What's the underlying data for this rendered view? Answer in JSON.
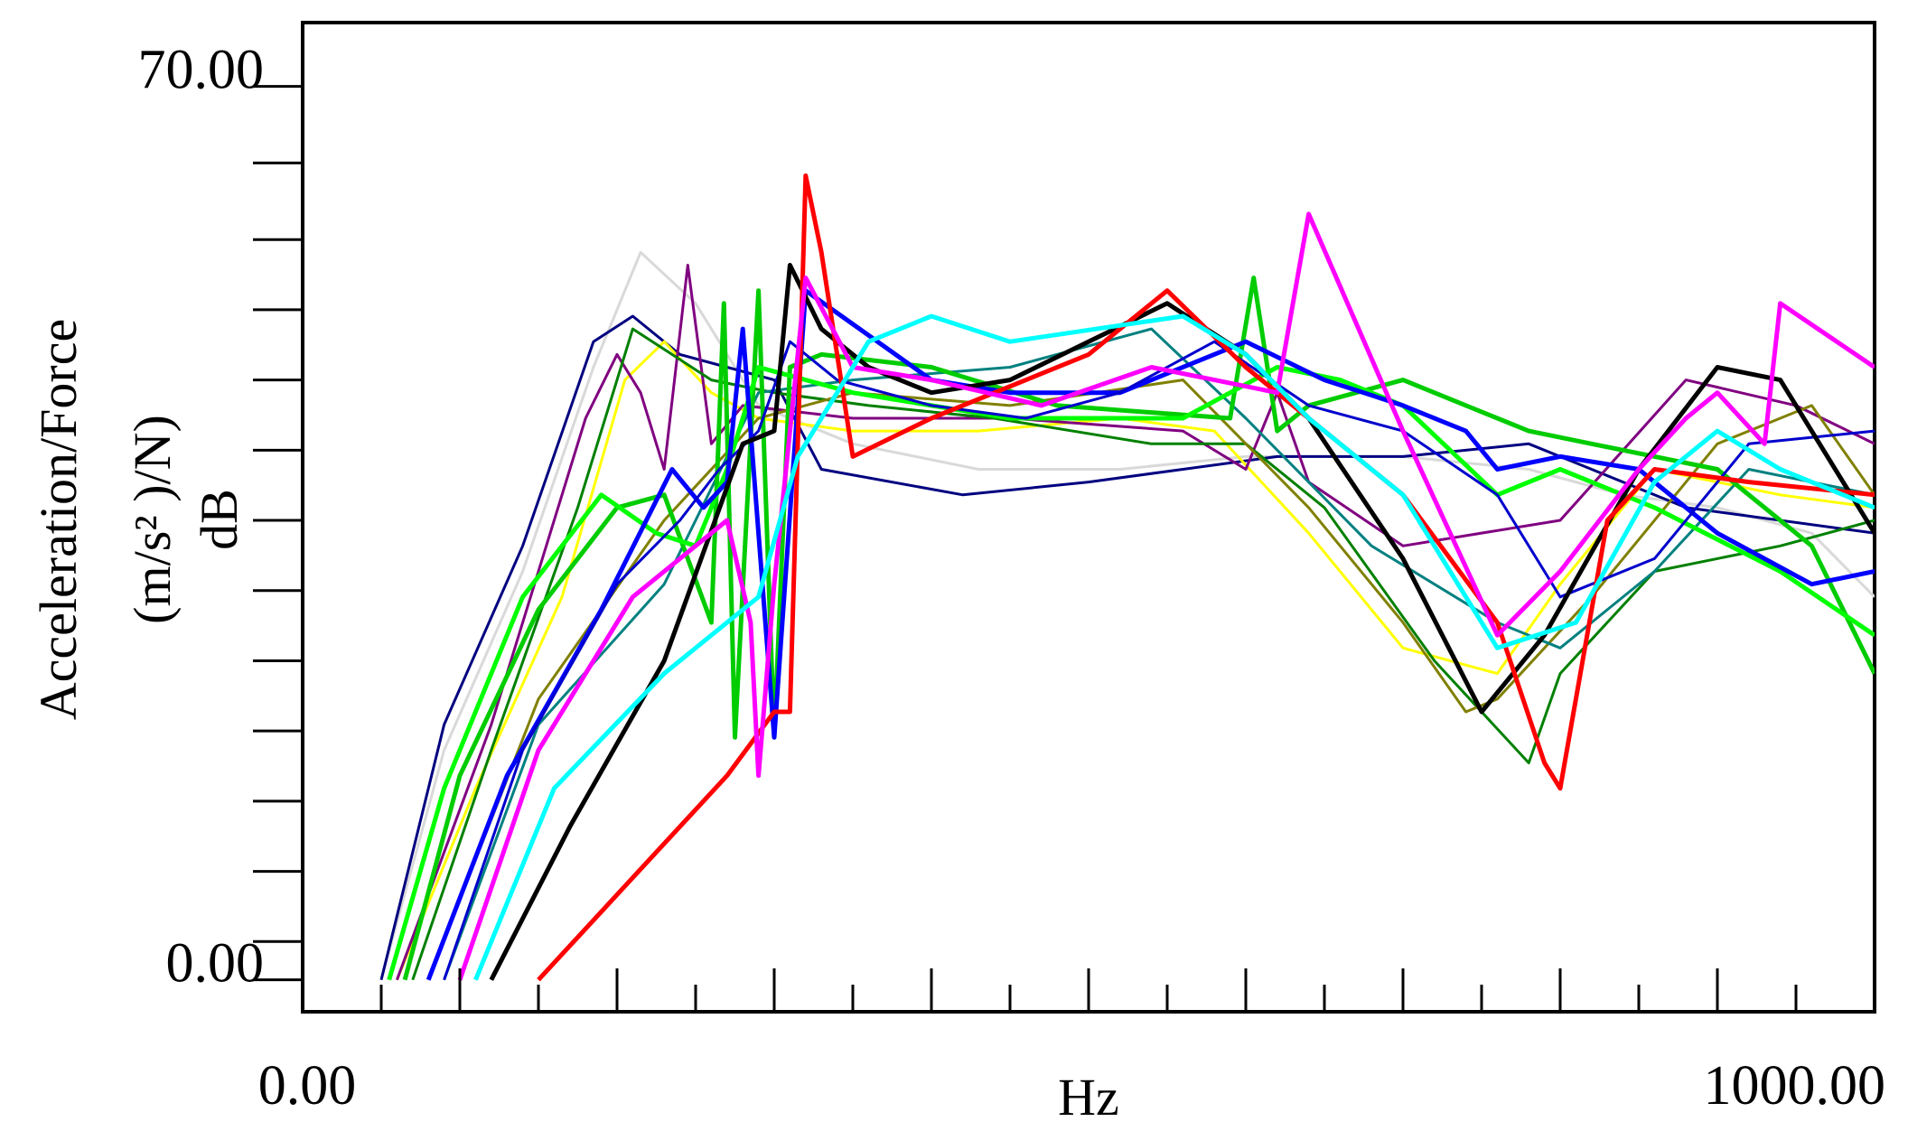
{
  "chart_data": {
    "type": "line",
    "title": "",
    "xlabel": "Hz",
    "ylabel_lines": [
      "Acceleration/Force",
      "(m/s² )/N)",
      "dB"
    ],
    "xlim": [
      0,
      1000
    ],
    "ylim": [
      -2.5,
      75
    ],
    "x_tick_labels": [
      {
        "value": 0,
        "label": "0.00"
      },
      {
        "value": 1000,
        "label": "1000.00"
      }
    ],
    "y_tick_labels": [
      {
        "value": 0,
        "label": "0.00"
      },
      {
        "value": 70,
        "label": "70.00"
      }
    ],
    "x_minor_ticks": [
      50,
      100,
      150,
      200,
      250,
      300,
      350,
      400,
      450,
      500,
      550,
      600,
      650,
      700,
      750,
      800,
      850,
      900,
      950
    ],
    "x_minor_tick_long": [
      100,
      200,
      300,
      400,
      500,
      600,
      700,
      800,
      900
    ],
    "y_minor_ticks": [
      3,
      8.5,
      14,
      19.5,
      25,
      30.5,
      36,
      41.5,
      47,
      52.5,
      58,
      64
    ],
    "grid": false,
    "legend": "none",
    "series": [
      {
        "color": "#d9d9d9",
        "width": 3,
        "x": [
          50,
          90,
          140,
          185,
          215,
          250,
          290,
          350,
          430,
          520,
          600,
          700,
          780,
          840,
          900,
          960,
          1000
        ],
        "y": [
          0,
          18,
          32,
          48,
          57,
          53,
          45,
          42,
          40,
          40,
          41,
          41,
          40,
          38,
          37,
          35,
          30
        ]
      },
      {
        "color": "#000080",
        "width": 3,
        "x": [
          50,
          90,
          140,
          185,
          210,
          240,
          270,
          300,
          330,
          420,
          500,
          560,
          620,
          700,
          780,
          820,
          880,
          1000
        ],
        "y": [
          0,
          20,
          34,
          50,
          52,
          49,
          48,
          47,
          40,
          38,
          39,
          40,
          41,
          41,
          42,
          40,
          37,
          35
        ]
      },
      {
        "color": "#ffff00",
        "width": 3,
        "x": [
          60,
          110,
          165,
          205,
          230,
          260,
          290,
          350,
          430,
          520,
          580,
          640,
          700,
          760,
          800,
          860,
          940,
          1000
        ],
        "y": [
          0,
          15,
          30,
          47,
          50,
          46,
          44,
          43,
          43,
          44,
          43,
          35,
          26,
          24,
          31,
          40,
          38,
          37
        ]
      },
      {
        "color": "#800080",
        "width": 3,
        "x": [
          60,
          120,
          180,
          200,
          215,
          230,
          245,
          260,
          280,
          350,
          450,
          560,
          600,
          620,
          640,
          700,
          800,
          880,
          950,
          1000
        ],
        "y": [
          0,
          20,
          44,
          49,
          46,
          40,
          56,
          42,
          45,
          44,
          44,
          43,
          40,
          46,
          39,
          34,
          36,
          47,
          45,
          42
        ]
      },
      {
        "color": "#008000",
        "width": 3,
        "x": [
          70,
          120,
          175,
          210,
          260,
          300,
          360,
          440,
          540,
          600,
          650,
          720,
          780,
          800,
          860,
          940,
          1000
        ],
        "y": [
          0,
          18,
          37,
          51,
          47,
          46,
          45,
          44,
          42,
          42,
          37,
          25,
          17,
          24,
          32,
          34,
          36
        ]
      },
      {
        "color": "#808000",
        "width": 3,
        "x": [
          80,
          150,
          230,
          290,
          350,
          450,
          560,
          640,
          700,
          740,
          760,
          820,
          900,
          960,
          1000
        ],
        "y": [
          0,
          22,
          36,
          44,
          46,
          45,
          47,
          37,
          28,
          21,
          22,
          30,
          42,
          45,
          38
        ]
      },
      {
        "color": "#008080",
        "width": 3,
        "x": [
          90,
          150,
          230,
          290,
          350,
          450,
          540,
          600,
          680,
          760,
          800,
          860,
          920,
          1000
        ],
        "y": [
          0,
          20,
          31,
          46,
          47,
          48,
          51,
          44,
          34,
          28,
          26,
          32,
          40,
          38
        ]
      },
      {
        "color": "#00cc00",
        "width": 5,
        "x": [
          65,
          100,
          150,
          200,
          230,
          260,
          268,
          275,
          290,
          300,
          310,
          330,
          400,
          480,
          590,
          605,
          620,
          640,
          700,
          780,
          820,
          900,
          960,
          1000
        ],
        "y": [
          0,
          16,
          29,
          37,
          38,
          28,
          53,
          19,
          54,
          19,
          48,
          49,
          48,
          45,
          44,
          55,
          43,
          45,
          47,
          43,
          42,
          40,
          34,
          24
        ]
      },
      {
        "color": "#00ff00",
        "width": 5,
        "x": [
          55,
          90,
          140,
          190,
          225,
          250,
          270,
          290,
          350,
          450,
          560,
          620,
          660,
          700,
          760,
          800,
          860,
          940,
          1000
        ],
        "y": [
          0,
          15,
          30,
          38,
          35,
          34,
          40,
          48,
          46,
          44,
          44,
          48,
          47,
          45,
          38,
          40,
          37,
          32,
          27
        ]
      },
      {
        "color": "#0000ff",
        "width": 5,
        "x": [
          80,
          130,
          190,
          235,
          255,
          270,
          280,
          300,
          320,
          400,
          450,
          520,
          600,
          650,
          700,
          740,
          760,
          800,
          850,
          900,
          960,
          1000
        ],
        "y": [
          0,
          16,
          29,
          40,
          37,
          39,
          51,
          19,
          54,
          47,
          46,
          46,
          50,
          47,
          45,
          43,
          40,
          41,
          40,
          35,
          31,
          32
        ]
      },
      {
        "color": "#0000cc",
        "width": 3,
        "x": [
          90,
          140,
          200,
          240,
          265,
          290,
          310,
          340,
          400,
          460,
          520,
          580,
          640,
          700,
          760,
          800,
          860,
          920,
          1000
        ],
        "y": [
          0,
          18,
          31,
          36,
          40,
          43,
          50,
          47,
          45,
          44,
          46,
          50,
          45,
          43,
          38,
          30,
          33,
          42,
          43
        ]
      },
      {
        "color": "#000000",
        "width": 5,
        "x": [
          120,
          170,
          230,
          280,
          300,
          310,
          330,
          360,
          400,
          450,
          550,
          600,
          640,
          700,
          750,
          790,
          850,
          900,
          940,
          1000
        ],
        "y": [
          0,
          12,
          25,
          42,
          43,
          56,
          51,
          48,
          46,
          47,
          53,
          49,
          44,
          33,
          21,
          27,
          40,
          48,
          47,
          35
        ]
      },
      {
        "color": "#ff0000",
        "width": 5,
        "x": [
          150,
          210,
          270,
          300,
          310,
          320,
          330,
          350,
          400,
          500,
          550,
          600,
          640,
          700,
          760,
          790,
          800,
          830,
          860,
          920,
          1000
        ],
        "y": [
          0,
          8,
          16,
          21,
          21,
          63,
          57,
          41,
          44,
          49,
          54,
          48,
          44,
          38,
          28,
          17,
          15,
          36,
          40,
          39,
          38
        ]
      },
      {
        "color": "#ff00ff",
        "width": 5,
        "x": [
          100,
          150,
          210,
          240,
          270,
          285,
          290,
          300,
          310,
          320,
          350,
          400,
          470,
          540,
          580,
          620,
          640,
          700,
          760,
          800,
          850,
          880,
          900,
          930,
          940,
          1000
        ],
        "y": [
          0,
          18,
          30,
          33,
          36,
          28,
          16,
          31,
          43,
          55,
          48,
          47,
          45,
          48,
          47,
          46,
          60,
          43,
          27,
          32,
          40,
          44,
          46,
          42,
          53,
          48
        ]
      },
      {
        "color": "#00ffff",
        "width": 5,
        "x": [
          110,
          160,
          230,
          290,
          315,
          340,
          360,
          400,
          450,
          560,
          600,
          640,
          700,
          760,
          810,
          860,
          900,
          940,
          1000
        ],
        "y": [
          0,
          15,
          24,
          30,
          41,
          46,
          50,
          52,
          50,
          52,
          49,
          44,
          38,
          26,
          28,
          39,
          43,
          40,
          37
        ]
      }
    ]
  }
}
